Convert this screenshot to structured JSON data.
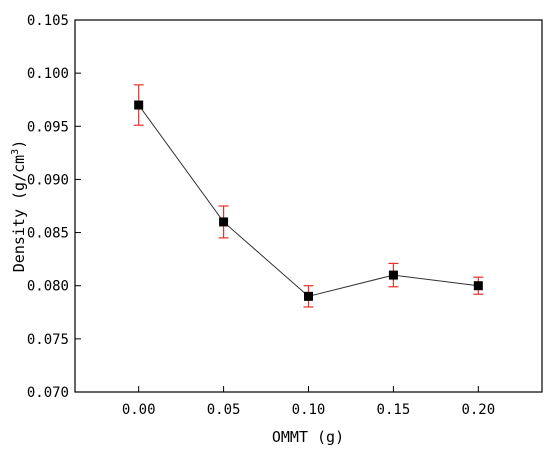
{
  "chart_data": {
    "type": "line",
    "title": "",
    "xlabel": "OMMT (g)",
    "ylabel_main": "Density (g/cm",
    "ylabel_sup": "3",
    "ylabel_close": ")",
    "x": [
      0.0,
      0.05,
      0.1,
      0.15,
      0.2
    ],
    "x_tick_labels": [
      "0.00",
      "0.05",
      "0.10",
      "0.15",
      "0.20"
    ],
    "y_tick_labels": [
      "0.070",
      "0.075",
      "0.080",
      "0.085",
      "0.090",
      "0.095",
      "0.100",
      "0.105"
    ],
    "y_ticks": [
      0.07,
      0.075,
      0.08,
      0.085,
      0.09,
      0.095,
      0.1,
      0.105
    ],
    "xlim": [
      -0.0375,
      0.2375
    ],
    "ylim": [
      0.07,
      0.105
    ],
    "series": [
      {
        "values": [
          0.097,
          0.086,
          0.079,
          0.081,
          0.08
        ],
        "errors": [
          0.0019,
          0.0015,
          0.001,
          0.0011,
          0.0008
        ],
        "marker": "square",
        "color": "#000000",
        "error_color": "#e8312a"
      }
    ],
    "grid": false,
    "legend": "none"
  }
}
